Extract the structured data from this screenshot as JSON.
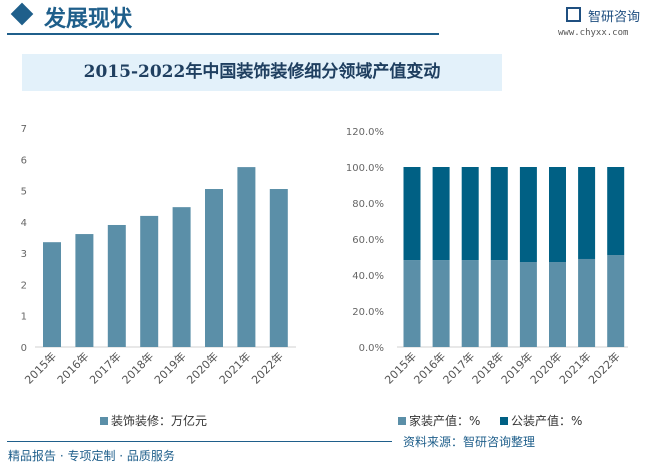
{
  "header": {
    "title": "发展现状",
    "logo": "智研咨询",
    "url": "www.chyxx.com"
  },
  "title": "2015-2022年中国装饰装修细分领域产值变动",
  "chart_data": [
    {
      "type": "bar",
      "categories": [
        "2015年",
        "2016年",
        "2017年",
        "2018年",
        "2019年",
        "2020年",
        "2021年",
        "2022年"
      ],
      "series": [
        {
          "name": "装饰装修：万亿元",
          "values": [
            3.35,
            3.61,
            3.9,
            4.19,
            4.47,
            5.05,
            5.75,
            5.05
          ],
          "color": "#5b8fa8"
        }
      ],
      "yticks": [
        "0",
        "1",
        "2",
        "3",
        "4",
        "5",
        "6",
        "7"
      ],
      "ylim": [
        0,
        7
      ],
      "legend": "bottom"
    },
    {
      "type": "bar",
      "stacked": true,
      "categories": [
        "2015年",
        "2016年",
        "2017年",
        "2018年",
        "2019年",
        "2020年",
        "2021年",
        "2022年"
      ],
      "series": [
        {
          "name": "家装产值：%",
          "values": [
            48.3,
            48.3,
            48.3,
            48.3,
            47.2,
            47.2,
            48.9,
            51.1
          ],
          "color": "#5b8fa8"
        },
        {
          "name": "公装产值：%",
          "values": [
            51.7,
            51.7,
            51.7,
            51.7,
            52.8,
            52.8,
            51.1,
            48.9
          ],
          "color": "#006084"
        }
      ],
      "yticks": [
        "0.0%",
        "20.0%",
        "40.0%",
        "60.0%",
        "80.0%",
        "100.0%",
        "120.0%"
      ],
      "ylim": [
        0,
        120
      ],
      "legend": "bottom"
    }
  ],
  "footer": {
    "left": "精品报告 · 专项定制 · 品质服务",
    "source": "资料来源：智研咨询整理"
  }
}
